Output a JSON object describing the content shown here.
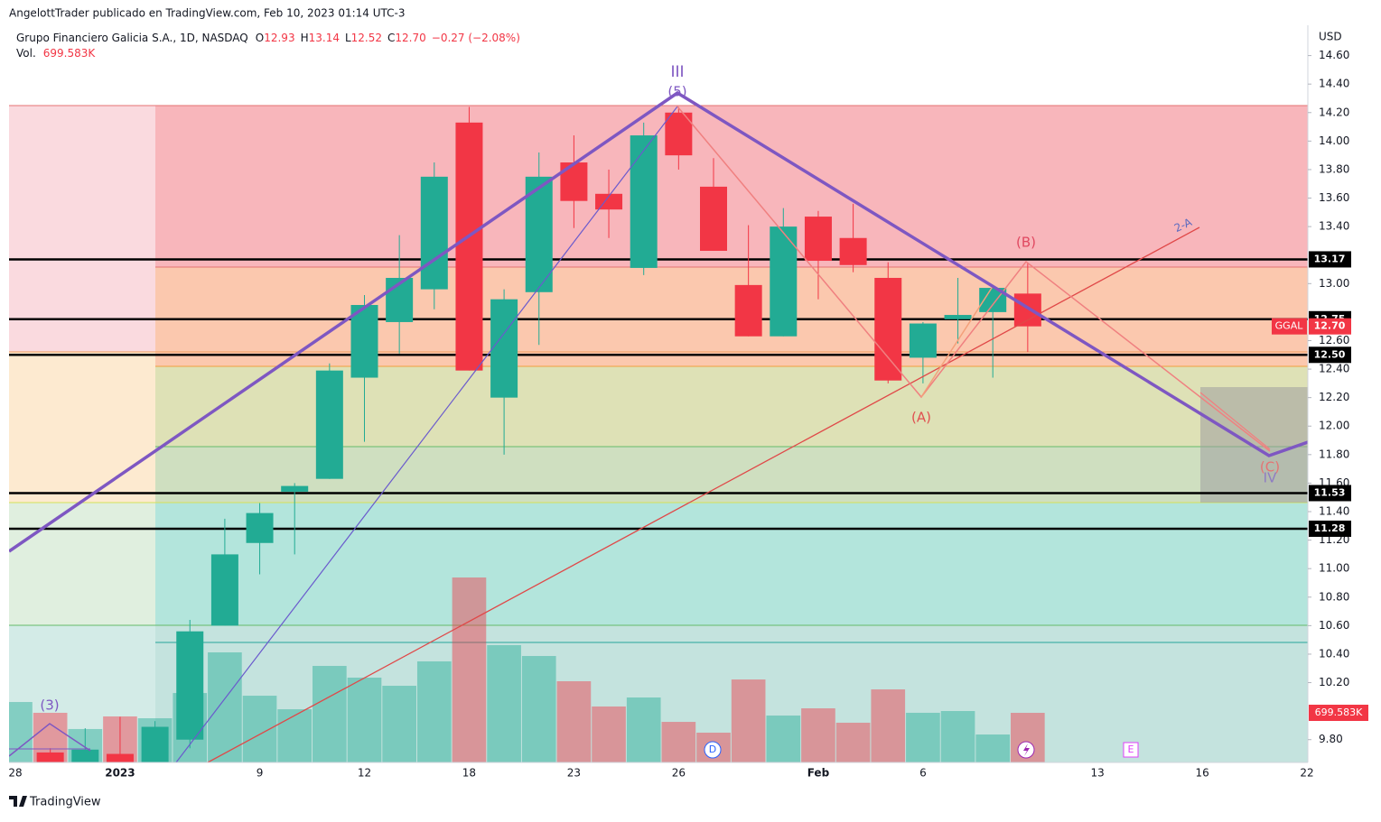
{
  "chart_data": {
    "type": "candlestick",
    "attribution": "AngelottTrader publicado en TradingView.com, Feb 10, 2023 01:14 UTC-3",
    "symbol_title": "Grupo Financiero Galicia S.A., 1D, NASDAQ",
    "header_ohlc": {
      "open_label": "O",
      "open": "12.93",
      "high_label": "H",
      "high": "13.14",
      "low_label": "L",
      "low": "12.52",
      "close_label": "C",
      "close": "12.70",
      "change": "−0.27 (−2.08%)"
    },
    "currency": "USD",
    "categories": [
      "28",
      null,
      null,
      "2023",
      null,
      null,
      null,
      "9",
      null,
      null,
      "12",
      null,
      null,
      "18",
      null,
      null,
      "23",
      null,
      null,
      "26",
      null,
      null,
      null,
      "Feb",
      null,
      null,
      "6",
      null,
      null,
      null,
      null,
      "13",
      null,
      null,
      "16",
      null,
      null,
      "22"
    ],
    "open": [
      null,
      9.71,
      9.6,
      9.7,
      9.55,
      9.8,
      10.6,
      11.18,
      11.54,
      11.63,
      12.34,
      12.73,
      12.96,
      14.13,
      12.2,
      12.94,
      13.85,
      13.63,
      13.11,
      14.2,
      13.68,
      12.99,
      12.63,
      13.47,
      13.32,
      13.04,
      12.48,
      12.75,
      12.8,
      12.93,
      null,
      null,
      null,
      null,
      null,
      null,
      null,
      null
    ],
    "high": [
      null,
      9.74,
      9.88,
      9.96,
      9.93,
      10.64,
      11.35,
      11.46,
      11.6,
      12.44,
      12.92,
      13.34,
      13.85,
      14.24,
      12.96,
      13.92,
      14.04,
      13.8,
      14.13,
      14.24,
      13.88,
      13.41,
      13.53,
      13.51,
      13.56,
      13.15,
      12.73,
      13.04,
      12.99,
      13.14,
      null,
      null,
      null,
      null,
      null,
      null,
      null,
      null
    ],
    "low": [
      null,
      9.5,
      9.55,
      9.5,
      9.5,
      9.74,
      10.6,
      10.96,
      11.1,
      11.63,
      11.89,
      12.51,
      12.82,
      12.39,
      11.8,
      12.57,
      13.39,
      13.32,
      13.06,
      13.8,
      13.23,
      12.63,
      12.63,
      12.89,
      13.08,
      12.3,
      12.3,
      12.58,
      12.34,
      12.52,
      null,
      null,
      null,
      null,
      null,
      null,
      null,
      null
    ],
    "close": [
      null,
      9.58,
      9.73,
      9.55,
      9.89,
      10.56,
      11.1,
      11.39,
      11.58,
      12.39,
      12.85,
      13.04,
      13.75,
      12.39,
      12.89,
      13.75,
      13.58,
      13.52,
      14.04,
      13.9,
      13.23,
      12.63,
      13.4,
      13.16,
      13.13,
      12.32,
      12.72,
      12.78,
      12.97,
      12.7,
      null,
      null,
      null,
      null,
      null,
      null,
      null,
      null
    ],
    "up_color": "#22ab94",
    "down_color": "#f23645",
    "volume": {
      "name": "Vol.",
      "last_label": "699.583K",
      "values": [
        852000,
        700000,
        471000,
        649000,
        623000,
        979000,
        1552000,
        941000,
        750000,
        1361000,
        1196000,
        1081000,
        1425000,
        2608000,
        1654000,
        1501000,
        1145000,
        789000,
        916000,
        572000,
        420000,
        1170000,
        661000,
        763000,
        560000,
        1030000,
        700000,
        725000,
        394000,
        699583,
        null,
        null,
        null,
        null,
        null,
        null,
        null,
        null
      ]
    },
    "ylim": [
      9.64,
      14.8
    ],
    "yticks": [
      {
        "value": 9.8,
        "label": "9.80"
      },
      {
        "value": 10.2,
        "label": "10.20"
      },
      {
        "value": 10.4,
        "label": "10.40"
      },
      {
        "value": 10.6,
        "label": "10.60"
      },
      {
        "value": 10.8,
        "label": "10.80"
      },
      {
        "value": 11,
        "label": "11.00"
      },
      {
        "value": 11.2,
        "label": "11.20"
      },
      {
        "value": 11.4,
        "label": "11.40"
      },
      {
        "value": 11.6,
        "label": "11.60"
      },
      {
        "value": 11.8,
        "label": "11.80"
      },
      {
        "value": 12,
        "label": "12.00"
      },
      {
        "value": 12.2,
        "label": "12.20"
      },
      {
        "value": 12.4,
        "label": "12.40"
      },
      {
        "value": 12.6,
        "label": "12.60"
      },
      {
        "value": 13,
        "label": "13.00"
      },
      {
        "value": 13.4,
        "label": "13.40"
      },
      {
        "value": 13.6,
        "label": "13.60"
      },
      {
        "value": 13.8,
        "label": "13.80"
      },
      {
        "value": 14,
        "label": "14.00"
      },
      {
        "value": 14.2,
        "label": "14.20"
      },
      {
        "value": 14.4,
        "label": "14.40"
      },
      {
        "value": 14.6,
        "label": "14.60"
      }
    ],
    "price_lines": [
      13.17,
      12.75,
      {
        "value": 12.5,
        "label": "12.50"
      },
      11.53,
      11.28
    ],
    "last_price": {
      "symbol": "GGAL",
      "value": 12.7,
      "label": "12.70"
    },
    "annotations": [
      "III",
      "(5)",
      "(B)",
      "(A)",
      "(C)",
      "IV",
      "(3)",
      "2-A"
    ],
    "event_markers": [
      "D",
      "E"
    ],
    "brand": "TradingView"
  }
}
